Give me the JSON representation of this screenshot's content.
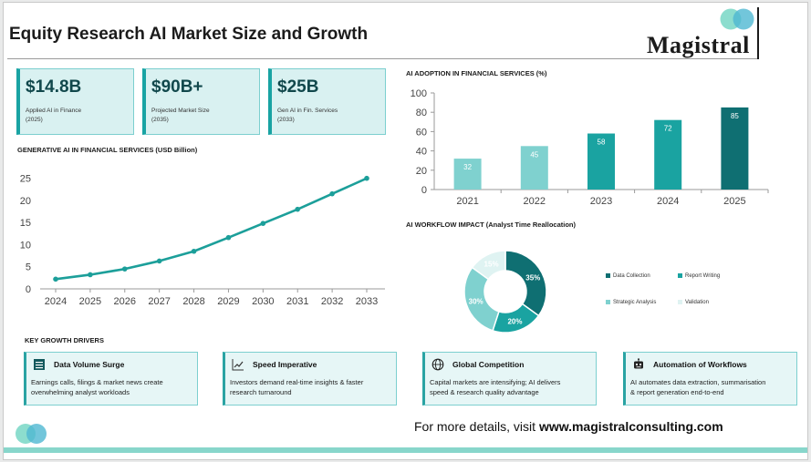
{
  "header": {
    "title": "Equity Research AI Market Size and Growth",
    "brand": "Magistral"
  },
  "stats": [
    {
      "value": "$14.8B",
      "label_line1": "Applied AI in Finance",
      "label_line2": "(2025)"
    },
    {
      "value": "$90B+",
      "label_line1": "Projected Market Size",
      "label_line2": "(2035)"
    },
    {
      "value": "$25B",
      "label_line1": "Gen AI in Fin. Services",
      "label_line2": "(2033)"
    }
  ],
  "colors": {
    "teal_dark": "#0f6f72",
    "teal_mid": "#159a9c",
    "teal_light": "#7fd1cf",
    "teal_pale": "#dff3f2",
    "line": "#1c9f9a"
  },
  "chart_data": [
    {
      "type": "line",
      "title": "GENERATIVE AI IN FINANCIAL SERVICES  (USD Billion)",
      "x": [
        "2024",
        "2025",
        "2026",
        "2027",
        "2028",
        "2029",
        "2030",
        "2031",
        "2032",
        "2033"
      ],
      "y": [
        2.2,
        3.2,
        4.5,
        6.3,
        8.5,
        11.6,
        14.8,
        18.0,
        21.5,
        25.0
      ],
      "yticks": [
        0,
        5,
        10,
        15,
        20,
        25
      ],
      "ylim": [
        0,
        27
      ],
      "grid": false
    },
    {
      "type": "bar",
      "title": "AI ADOPTION IN FINANCIAL SERVICES  (%)",
      "categories": [
        "2021",
        "2022",
        "2023",
        "2024",
        "2025"
      ],
      "values": [
        32,
        45,
        58,
        72,
        85
      ],
      "yticks": [
        0,
        20,
        40,
        60,
        80,
        100
      ],
      "ylim": [
        0,
        100
      ],
      "bar_colors": [
        "#7fd1cf",
        "#7fd1cf",
        "#1aa3a1",
        "#1aa3a1",
        "#0f6f72"
      ]
    },
    {
      "type": "pie",
      "title": "AI WORKFLOW IMPACT  (Analyst Time Reallocation)",
      "slices": [
        {
          "label": "Data Collection",
          "value": 35,
          "text": "35%",
          "color": "#0f6f72"
        },
        {
          "label": "Report Writing",
          "value": 20,
          "text": "20%",
          "color": "#1aa3a1"
        },
        {
          "label": "Strategic Analysis",
          "value": 30,
          "text": "30%",
          "color": "#7fd1cf"
        },
        {
          "label": "Validation",
          "value": 15,
          "text": "15%",
          "color": "#dff3f2"
        }
      ]
    }
  ],
  "drivers": {
    "title": "KEY GROWTH DRIVERS",
    "items": [
      {
        "title": "Data Volume Surge",
        "line1": "Earnings calls, filings & market news create",
        "line2": "overwhelming analyst workloads",
        "icon": "database-icon"
      },
      {
        "title": "Speed Imperative",
        "line1": "Investors demand real-time insights & faster",
        "line2": "research turnaround",
        "icon": "trend-chart-icon"
      },
      {
        "title": "Global Competition",
        "line1": "Capital markets are intensifying; AI delivers",
        "line2": "speed & research quality advantage",
        "icon": "globe-icon"
      },
      {
        "title": "Automation of Workflows",
        "line1": "AI automates data extraction, summarisation",
        "line2": "& report generation end-to-end",
        "icon": "robot-icon"
      }
    ]
  },
  "footer": {
    "prefix": "For more details, visit ",
    "url": "www.magistralconsulting.com"
  }
}
